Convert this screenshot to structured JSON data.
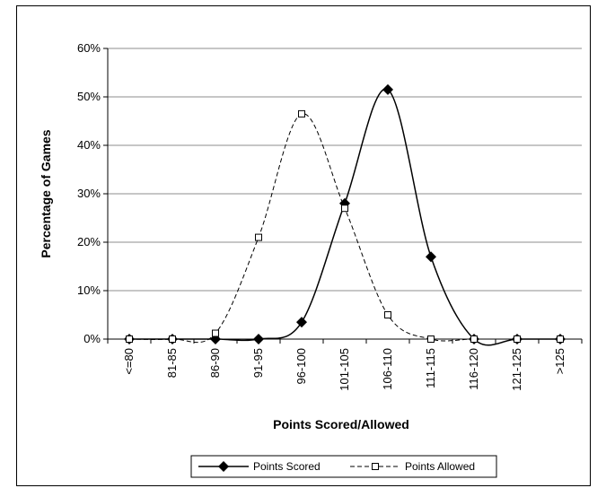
{
  "chart_data": {
    "type": "line",
    "title": "",
    "xlabel": "Points Scored/Allowed",
    "ylabel": "Percentage of Games",
    "categories": [
      "<=80",
      "81-85",
      "86-90",
      "91-95",
      "96-100",
      "101-105",
      "106-110",
      "111-115",
      "116-120",
      "121-125",
      ">125"
    ],
    "ylim": [
      0,
      60
    ],
    "yticks": [
      "0%",
      "10%",
      "20%",
      "30%",
      "40%",
      "50%",
      "60%"
    ],
    "grid": true,
    "legend": "bottom",
    "series": [
      {
        "name": "Points Scored",
        "values": [
          0,
          0,
          0,
          0,
          3.5,
          28,
          51.5,
          17,
          0,
          0,
          0
        ],
        "style": "solid",
        "marker": "diamond",
        "color": "#000000"
      },
      {
        "name": "Points Allowed",
        "values": [
          0,
          0,
          1.2,
          21,
          46.5,
          27,
          5,
          0,
          0,
          0,
          0
        ],
        "style": "dashed",
        "marker": "open-square",
        "color": "#000000"
      }
    ]
  }
}
